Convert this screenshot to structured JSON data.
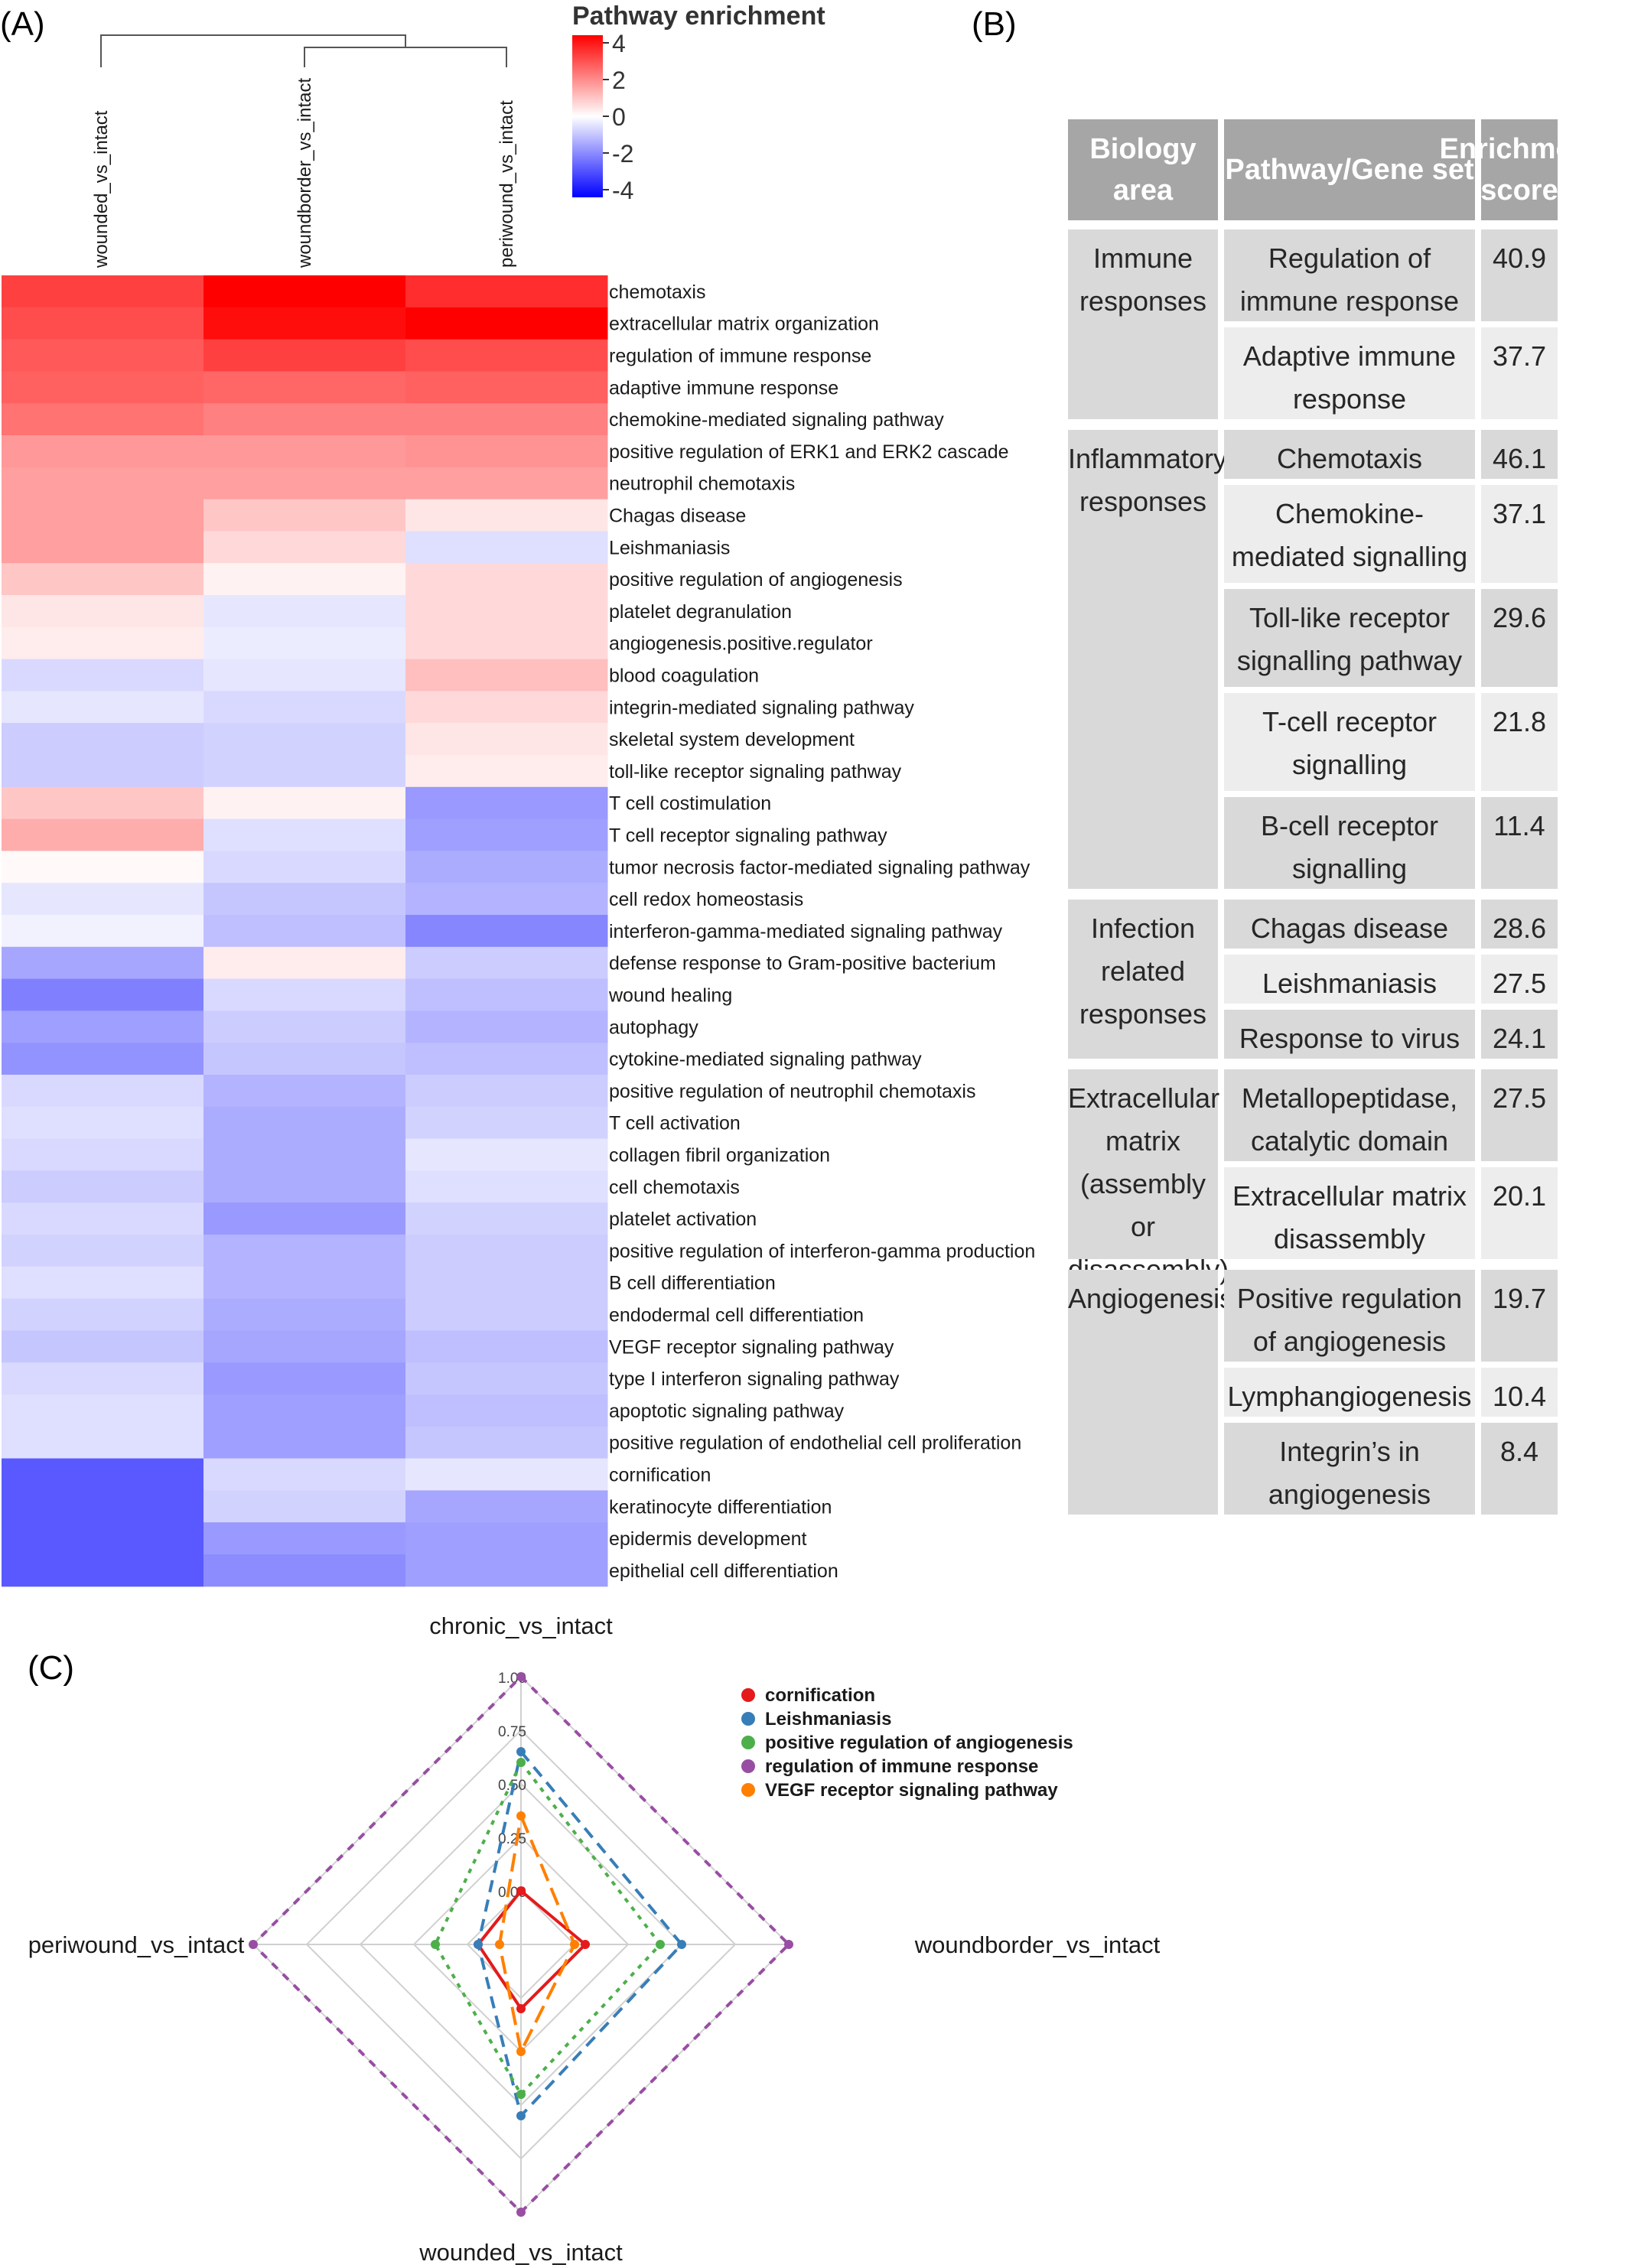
{
  "panels": {
    "a": "(A)",
    "b": "(B)",
    "c": "(C)"
  },
  "heatmap": {
    "legend_title": "Pathway enrichment",
    "legend_ticks": [
      "4",
      "2",
      "0",
      "-2",
      "-4"
    ],
    "columns": [
      "wounded_vs_intact",
      "woundborder_vs_intact",
      "periwound_vs_intact"
    ]
  },
  "table": {
    "headers": [
      "Biology area",
      "Pathway/Gene set",
      "Enrichment score"
    ],
    "groups": [
      {
        "area": "Immune responses",
        "rows": [
          {
            "pathway": "Regulation of immune response",
            "score": "40.9"
          },
          {
            "pathway": "Adaptive immune response",
            "score": "37.7"
          }
        ]
      },
      {
        "area": "Inflammatory responses",
        "rows": [
          {
            "pathway": "Chemotaxis",
            "score": "46.1"
          },
          {
            "pathway": "Chemokine-mediated signalling pathway",
            "score": "37.1"
          },
          {
            "pathway": "Toll-like receptor signalling pathway",
            "score": "29.6"
          },
          {
            "pathway": "T-cell receptor signalling",
            "score": "21.8"
          },
          {
            "pathway": "B-cell receptor signalling",
            "score": "11.4"
          }
        ]
      },
      {
        "area": "Infection related responses",
        "rows": [
          {
            "pathway": "Chagas disease",
            "score": "28.6"
          },
          {
            "pathway": "Leishmaniasis",
            "score": "27.5"
          },
          {
            "pathway": "Response to virus",
            "score": "24.1"
          }
        ]
      },
      {
        "area": "Extracellular matrix (assembly or disassembly)",
        "rows": [
          {
            "pathway": "Metallopeptidase, catalytic domain",
            "score": "27.5"
          },
          {
            "pathway": "Extracellular matrix disassembly",
            "score": "20.1"
          }
        ]
      },
      {
        "area": "Angiogenesis",
        "rows": [
          {
            "pathway": "Positive regulation of angiogenesis",
            "score": "19.7"
          },
          {
            "pathway": "Lymphangiogenesis",
            "score": "10.4"
          },
          {
            "pathway": "Integrin’s in angiogenesis",
            "score": "8.4"
          }
        ]
      }
    ]
  },
  "chart_data": [
    {
      "type": "heatmap",
      "title": "",
      "legend_title": "Pathway enrichment",
      "color_range": [
        -4,
        4
      ],
      "columns": [
        "wounded_vs_intact",
        "woundborder_vs_intact",
        "periwound_vs_intact"
      ],
      "rows": [
        "chemotaxis",
        "extracellular matrix organization",
        "regulation of immune response",
        "adaptive immune response",
        "chemokine-mediated signaling pathway",
        "positive regulation of ERK1 and ERK2 cascade",
        "neutrophil chemotaxis",
        "Chagas disease",
        "Leishmaniasis",
        "positive regulation of angiogenesis",
        "platelet degranulation",
        "angiogenesis.positive.regulator",
        "blood coagulation",
        "integrin-mediated signaling pathway",
        "skeletal system development",
        "toll-like receptor signaling pathway",
        "T cell costimulation",
        "T cell receptor signaling pathway",
        "tumor necrosis factor-mediated signaling pathway",
        "cell redox homeostasis",
        "interferon-gamma-mediated signaling pathway",
        "defense response to Gram-positive bacterium",
        "wound healing",
        "autophagy",
        "cytokine-mediated signaling pathway",
        "positive regulation of neutrophil chemotaxis",
        "T cell activation",
        "collagen fibril organization",
        "cell chemotaxis",
        "platelet activation",
        "positive regulation of interferon-gamma production",
        "B cell differentiation",
        "endodermal cell differentiation",
        "VEGF receptor signaling pathway",
        "type I interferon signaling pathway",
        "apoptotic signaling pathway",
        "positive regulation of endothelial cell proliferation",
        "cornification",
        "keratinocyte differentiation",
        "epidermis development",
        "epithelial cell differentiation"
      ],
      "values": [
        [
          3.0,
          4.0,
          3.3
        ],
        [
          2.8,
          3.8,
          4.0
        ],
        [
          2.6,
          3.0,
          2.8
        ],
        [
          2.5,
          2.4,
          2.5
        ],
        [
          2.2,
          2.0,
          2.0
        ],
        [
          1.6,
          1.6,
          1.7
        ],
        [
          1.5,
          1.5,
          1.5
        ],
        [
          1.5,
          0.9,
          0.4
        ],
        [
          1.5,
          0.6,
          -0.5
        ],
        [
          0.9,
          0.2,
          0.6
        ],
        [
          0.4,
          -0.4,
          0.6
        ],
        [
          0.3,
          -0.3,
          0.6
        ],
        [
          -0.6,
          -0.4,
          1.0
        ],
        [
          -0.4,
          -0.6,
          0.6
        ],
        [
          -0.8,
          -0.7,
          0.4
        ],
        [
          -0.8,
          -0.7,
          0.3
        ],
        [
          0.9,
          0.2,
          -1.6
        ],
        [
          1.3,
          -0.5,
          -1.5
        ],
        [
          0.1,
          -0.6,
          -1.3
        ],
        [
          -0.4,
          -0.9,
          -1.2
        ],
        [
          -0.2,
          -1.0,
          -1.9
        ],
        [
          -1.4,
          0.3,
          -0.8
        ],
        [
          -2.0,
          -0.6,
          -1.0
        ],
        [
          -1.5,
          -0.8,
          -1.2
        ],
        [
          -1.7,
          -0.9,
          -1.0
        ],
        [
          -0.6,
          -1.2,
          -0.8
        ],
        [
          -0.5,
          -1.3,
          -0.7
        ],
        [
          -0.6,
          -1.3,
          -0.4
        ],
        [
          -0.8,
          -1.3,
          -0.5
        ],
        [
          -0.6,
          -1.6,
          -0.7
        ],
        [
          -0.7,
          -1.2,
          -0.8
        ],
        [
          -0.5,
          -1.2,
          -0.8
        ],
        [
          -0.7,
          -1.3,
          -0.8
        ],
        [
          -0.9,
          -1.4,
          -1.0
        ],
        [
          -0.6,
          -1.6,
          -0.9
        ],
        [
          -0.5,
          -1.5,
          -1.0
        ],
        [
          -0.5,
          -1.5,
          -0.9
        ],
        [
          -2.6,
          -0.6,
          -0.4
        ],
        [
          -2.6,
          -0.7,
          -1.4
        ],
        [
          -2.6,
          -1.6,
          -1.5
        ],
        [
          -2.6,
          -1.8,
          -1.5
        ]
      ],
      "dendrogram": "wounded_vs_intact | (woundborder_vs_intact, periwound_vs_intact)"
    },
    {
      "type": "radar",
      "axes": [
        "chronic_vs_intact",
        "woundborder_vs_intact",
        "wounded_vs_intact",
        "periwound_vs_intact"
      ],
      "radial_ticks": [
        "0.00",
        "0.25",
        "0.50",
        "0.75",
        "1.00"
      ],
      "rlim": [
        -0.25,
        1.0
      ],
      "series": [
        {
          "name": "cornification",
          "color": "#e41a1c",
          "values": [
            0.0,
            0.05,
            0.05,
            -0.05
          ]
        },
        {
          "name": "Leishmaniasis",
          "color": "#377eb8",
          "values": [
            0.65,
            0.5,
            0.55,
            -0.05
          ]
        },
        {
          "name": "positive regulation of angiogenesis",
          "color": "#4daf4a",
          "values": [
            0.6,
            0.4,
            0.45,
            0.15
          ]
        },
        {
          "name": "regulation of immune response",
          "color": "#984ea3",
          "values": [
            1.0,
            1.0,
            1.0,
            1.0
          ]
        },
        {
          "name": "VEGF receptor signaling pathway",
          "color": "#ff7f00",
          "values": [
            0.35,
            0.0,
            0.25,
            -0.15
          ]
        }
      ]
    }
  ]
}
